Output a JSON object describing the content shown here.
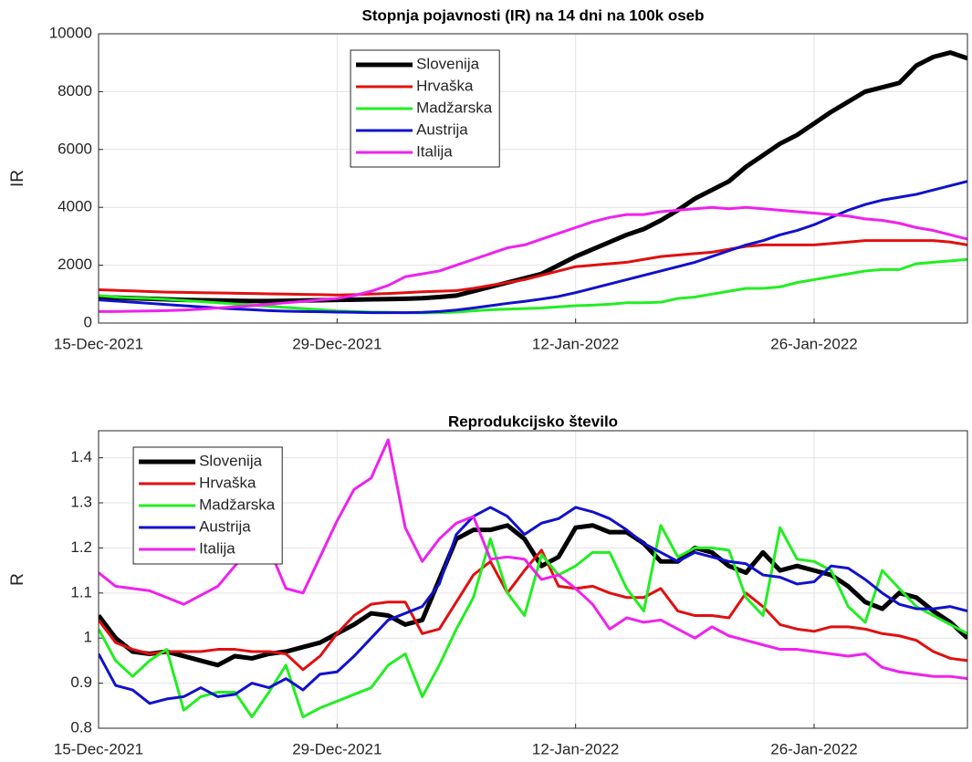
{
  "chart_data": [
    {
      "type": "line",
      "title": "Stopnja pojavnosti (IR) na 14 dni na 100k oseb",
      "ylabel": "IR",
      "x": [
        "15-Dec-2021",
        "16-Dec-2021",
        "17-Dec-2021",
        "18-Dec-2021",
        "19-Dec-2021",
        "20-Dec-2021",
        "21-Dec-2021",
        "22-Dec-2021",
        "23-Dec-2021",
        "24-Dec-2021",
        "25-Dec-2021",
        "26-Dec-2021",
        "27-Dec-2021",
        "28-Dec-2021",
        "29-Dec-2021",
        "30-Dec-2021",
        "31-Dec-2021",
        "01-Jan-2022",
        "02-Jan-2022",
        "03-Jan-2022",
        "04-Jan-2022",
        "05-Jan-2022",
        "06-Jan-2022",
        "07-Jan-2022",
        "08-Jan-2022",
        "09-Jan-2022",
        "10-Jan-2022",
        "11-Jan-2022",
        "12-Jan-2022",
        "13-Jan-2022",
        "14-Jan-2022",
        "15-Jan-2022",
        "16-Jan-2022",
        "17-Jan-2022",
        "18-Jan-2022",
        "19-Jan-2022",
        "20-Jan-2022",
        "21-Jan-2022",
        "22-Jan-2022",
        "23-Jan-2022",
        "24-Jan-2022",
        "25-Jan-2022",
        "26-Jan-2022",
        "27-Jan-2022",
        "28-Jan-2022",
        "29-Jan-2022",
        "30-Jan-2022",
        "31-Jan-2022",
        "01-Feb-2022",
        "02-Feb-2022",
        "03-Feb-2022",
        "04-Feb-2022"
      ],
      "xlim": [
        "15-Dec-2021",
        "04-Feb-2022"
      ],
      "xticks": [
        "15-Dec-2021",
        "29-Dec-2021",
        "12-Jan-2022",
        "26-Jan-2022"
      ],
      "ylim": [
        0,
        10000
      ],
      "yticks": [
        0,
        2000,
        4000,
        6000,
        8000,
        10000
      ],
      "grid": true,
      "legend": "upper center",
      "series": [
        {
          "name": "Slovenija",
          "color": "#000000",
          "linewidth": 5,
          "values": [
            900,
            880,
            860,
            840,
            820,
            800,
            790,
            780,
            770,
            760,
            760,
            770,
            780,
            790,
            800,
            810,
            820,
            830,
            840,
            860,
            900,
            950,
            1100,
            1250,
            1400,
            1550,
            1700,
            2000,
            2300,
            2550,
            2800,
            3050,
            3250,
            3550,
            3900,
            4300,
            4600,
            4900,
            5400,
            5800,
            6200,
            6500,
            6900,
            7300,
            7650,
            8000,
            8150,
            8300,
            8900,
            9200,
            9350,
            9150
          ]
        },
        {
          "name": "Hrvaška",
          "color": "#e01010",
          "linewidth": 3,
          "values": [
            1150,
            1130,
            1110,
            1090,
            1070,
            1060,
            1050,
            1040,
            1030,
            1020,
            1010,
            1000,
            990,
            980,
            970,
            980,
            1000,
            1020,
            1050,
            1080,
            1100,
            1120,
            1200,
            1300,
            1400,
            1500,
            1650,
            1800,
            1950,
            2000,
            2050,
            2100,
            2200,
            2300,
            2350,
            2400,
            2450,
            2550,
            2650,
            2700,
            2700,
            2700,
            2700,
            2750,
            2800,
            2850,
            2850,
            2850,
            2850,
            2850,
            2800,
            2700
          ]
        },
        {
          "name": "Madžarska",
          "color": "#22ee22",
          "linewidth": 3,
          "values": [
            950,
            900,
            870,
            850,
            820,
            780,
            740,
            700,
            660,
            620,
            580,
            540,
            500,
            460,
            420,
            400,
            380,
            370,
            360,
            350,
            360,
            380,
            420,
            460,
            480,
            500,
            520,
            560,
            600,
            620,
            650,
            700,
            700,
            720,
            850,
            900,
            1000,
            1100,
            1200,
            1200,
            1250,
            1400,
            1500,
            1600,
            1700,
            1800,
            1850,
            1850,
            2050,
            2100,
            2150,
            2200
          ]
        },
        {
          "name": "Austrija",
          "color": "#1111cc",
          "linewidth": 3,
          "values": [
            800,
            760,
            720,
            680,
            640,
            600,
            560,
            520,
            490,
            460,
            430,
            410,
            400,
            390,
            380,
            370,
            360,
            360,
            360,
            370,
            400,
            450,
            520,
            600,
            680,
            750,
            830,
            920,
            1050,
            1200,
            1350,
            1500,
            1650,
            1800,
            1950,
            2100,
            2300,
            2500,
            2700,
            2850,
            3050,
            3200,
            3400,
            3650,
            3900,
            4100,
            4250,
            4350,
            4450,
            4600,
            4750,
            4900
          ]
        },
        {
          "name": "Italija",
          "color": "#ee22ee",
          "linewidth": 3,
          "values": [
            400,
            400,
            410,
            420,
            430,
            450,
            480,
            520,
            560,
            600,
            650,
            700,
            750,
            800,
            850,
            950,
            1100,
            1300,
            1600,
            1700,
            1800,
            2000,
            2200,
            2400,
            2600,
            2700,
            2900,
            3100,
            3300,
            3500,
            3650,
            3750,
            3750,
            3850,
            3900,
            3950,
            4000,
            3950,
            4000,
            3950,
            3900,
            3850,
            3800,
            3750,
            3700,
            3600,
            3550,
            3450,
            3300,
            3200,
            3050,
            2900
          ]
        }
      ]
    },
    {
      "type": "line",
      "title": "Reprodukcijsko število",
      "ylabel": "R",
      "x": [
        "15-Dec-2021",
        "16-Dec-2021",
        "17-Dec-2021",
        "18-Dec-2021",
        "19-Dec-2021",
        "20-Dec-2021",
        "21-Dec-2021",
        "22-Dec-2021",
        "23-Dec-2021",
        "24-Dec-2021",
        "25-Dec-2021",
        "26-Dec-2021",
        "27-Dec-2021",
        "28-Dec-2021",
        "29-Dec-2021",
        "30-Dec-2021",
        "31-Dec-2021",
        "01-Jan-2022",
        "02-Jan-2022",
        "03-Jan-2022",
        "04-Jan-2022",
        "05-Jan-2022",
        "06-Jan-2022",
        "07-Jan-2022",
        "08-Jan-2022",
        "09-Jan-2022",
        "10-Jan-2022",
        "11-Jan-2022",
        "12-Jan-2022",
        "13-Jan-2022",
        "14-Jan-2022",
        "15-Jan-2022",
        "16-Jan-2022",
        "17-Jan-2022",
        "18-Jan-2022",
        "19-Jan-2022",
        "20-Jan-2022",
        "21-Jan-2022",
        "22-Jan-2022",
        "23-Jan-2022",
        "24-Jan-2022",
        "25-Jan-2022",
        "26-Jan-2022",
        "27-Jan-2022",
        "28-Jan-2022",
        "29-Jan-2022",
        "30-Jan-2022",
        "31-Jan-2022",
        "01-Feb-2022",
        "02-Feb-2022",
        "03-Feb-2022",
        "04-Feb-2022"
      ],
      "xlim": [
        "15-Dec-2021",
        "04-Feb-2022"
      ],
      "xticks": [
        "15-Dec-2021",
        "29-Dec-2021",
        "12-Jan-2022",
        "26-Jan-2022"
      ],
      "ylim": [
        0.8,
        1.46
      ],
      "yticks": [
        0.8,
        0.9,
        1,
        1.1,
        1.2,
        1.3,
        1.4
      ],
      "grid": true,
      "legend": "upper left",
      "series": [
        {
          "name": "Slovenija",
          "color": "#000000",
          "linewidth": 5,
          "values": [
            1.05,
            1.0,
            0.97,
            0.965,
            0.97,
            0.96,
            0.95,
            0.94,
            0.96,
            0.955,
            0.965,
            0.97,
            0.98,
            0.99,
            1.01,
            1.03,
            1.055,
            1.05,
            1.03,
            1.04,
            1.13,
            1.22,
            1.24,
            1.24,
            1.25,
            1.22,
            1.16,
            1.18,
            1.245,
            1.25,
            1.235,
            1.235,
            1.21,
            1.17,
            1.17,
            1.2,
            1.19,
            1.16,
            1.145,
            1.19,
            1.15,
            1.16,
            1.15,
            1.14,
            1.115,
            1.08,
            1.065,
            1.1,
            1.09,
            1.06,
            1.035,
            1.0
          ]
        },
        {
          "name": "Hrvaška",
          "color": "#e01010",
          "linewidth": 3,
          "values": [
            1.04,
            0.99,
            0.975,
            0.965,
            0.97,
            0.97,
            0.97,
            0.975,
            0.975,
            0.97,
            0.97,
            0.965,
            0.93,
            0.96,
            1.01,
            1.05,
            1.075,
            1.08,
            1.08,
            1.01,
            1.02,
            1.08,
            1.14,
            1.17,
            1.1,
            1.15,
            1.195,
            1.115,
            1.11,
            1.115,
            1.1,
            1.09,
            1.09,
            1.11,
            1.06,
            1.05,
            1.05,
            1.045,
            1.1,
            1.07,
            1.03,
            1.02,
            1.015,
            1.025,
            1.025,
            1.02,
            1.01,
            1.005,
            0.995,
            0.97,
            0.955,
            0.95
          ]
        },
        {
          "name": "Madžarska",
          "color": "#22ee22",
          "linewidth": 3,
          "values": [
            1.02,
            0.95,
            0.915,
            0.95,
            0.975,
            0.84,
            0.87,
            0.88,
            0.88,
            0.825,
            0.88,
            0.94,
            0.825,
            0.845,
            0.86,
            0.875,
            0.89,
            0.94,
            0.965,
            0.87,
            0.94,
            1.02,
            1.09,
            1.22,
            1.1,
            1.05,
            1.185,
            1.14,
            1.16,
            1.19,
            1.19,
            1.11,
            1.06,
            1.25,
            1.18,
            1.2,
            1.2,
            1.195,
            1.09,
            1.05,
            1.245,
            1.175,
            1.17,
            1.15,
            1.07,
            1.035,
            1.15,
            1.11,
            1.07,
            1.05,
            1.03,
            1.01
          ]
        },
        {
          "name": "Austrija",
          "color": "#1111cc",
          "linewidth": 3,
          "values": [
            0.965,
            0.895,
            0.885,
            0.855,
            0.865,
            0.87,
            0.89,
            0.87,
            0.875,
            0.9,
            0.89,
            0.91,
            0.885,
            0.92,
            0.925,
            0.96,
            1.0,
            1.04,
            1.055,
            1.07,
            1.12,
            1.23,
            1.27,
            1.29,
            1.27,
            1.23,
            1.255,
            1.265,
            1.29,
            1.28,
            1.265,
            1.24,
            1.21,
            1.19,
            1.17,
            1.19,
            1.18,
            1.17,
            1.165,
            1.14,
            1.135,
            1.12,
            1.125,
            1.16,
            1.155,
            1.13,
            1.1,
            1.075,
            1.065,
            1.065,
            1.07,
            1.06
          ]
        },
        {
          "name": "Italija",
          "color": "#ee22ee",
          "linewidth": 3,
          "values": [
            1.145,
            1.115,
            1.11,
            1.105,
            1.09,
            1.075,
            1.095,
            1.115,
            1.16,
            1.2,
            1.2,
            1.11,
            1.1,
            1.18,
            1.26,
            1.33,
            1.355,
            1.44,
            1.245,
            1.17,
            1.22,
            1.255,
            1.27,
            1.175,
            1.18,
            1.175,
            1.13,
            1.14,
            1.11,
            1.075,
            1.02,
            1.045,
            1.035,
            1.04,
            1.02,
            1.0,
            1.025,
            1.005,
            0.995,
            0.985,
            0.975,
            0.975,
            0.97,
            0.965,
            0.96,
            0.965,
            0.935,
            0.925,
            0.92,
            0.915,
            0.915,
            0.91
          ]
        }
      ]
    }
  ]
}
